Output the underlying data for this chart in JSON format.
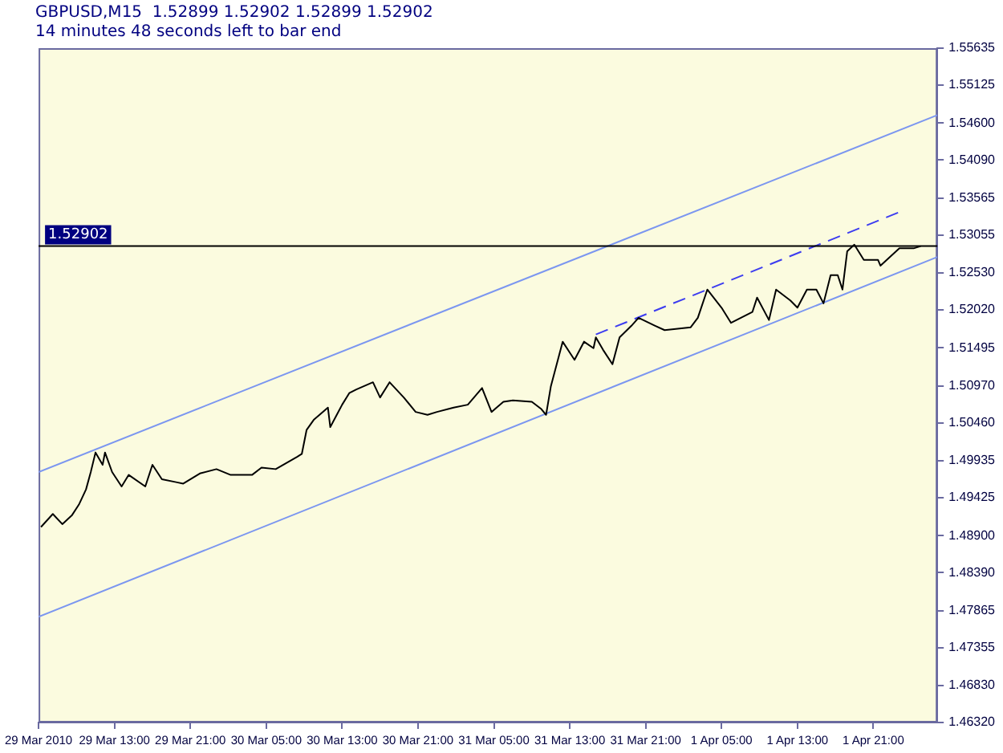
{
  "chart_data": {
    "type": "line",
    "title": "GBPUSD,M15  1.52899 1.52902 1.52899 1.52902",
    "subtitle": "14 minutes 48 seconds left to bar end",
    "series": [
      {
        "color": "#000000",
        "x": [
          "2010-03-29T05:15",
          "2010-03-29T06:30",
          "2010-03-29T07:30",
          "2010-03-29T08:30",
          "2010-03-29T09:15",
          "2010-03-29T10:00",
          "2010-03-29T10:30",
          "2010-03-29T11:00",
          "2010-03-29T11:45",
          "2010-03-29T12:00",
          "2010-03-29T12:45",
          "2010-03-29T13:45",
          "2010-03-29T14:30",
          "2010-03-29T16:15",
          "2010-03-29T17:00",
          "2010-03-29T18:00",
          "2010-03-29T19:30",
          "2010-03-29T20:15",
          "2010-03-29T22:00",
          "2010-03-29T23:45",
          "2010-03-30T01:15",
          "2010-03-30T03:30",
          "2010-03-30T04:30",
          "2010-03-30T06:00",
          "2010-03-30T08:15",
          "2010-03-30T08:45",
          "2010-03-30T09:15",
          "2010-03-30T10:00",
          "2010-03-30T11:30",
          "2010-03-30T11:45",
          "2010-03-30T13:00",
          "2010-03-30T13:45",
          "2010-03-30T14:30",
          "2010-03-30T16:15",
          "2010-03-30T17:00",
          "2010-03-30T18:00",
          "2010-03-30T19:30",
          "2010-03-30T20:45",
          "2010-03-30T22:00",
          "2010-03-30T23:00",
          "2010-03-31T00:45",
          "2010-03-31T02:15",
          "2010-03-31T03:45",
          "2010-03-31T04:45",
          "2010-03-31T06:00",
          "2010-03-31T07:00",
          "2010-03-31T09:00",
          "2010-03-31T10:00",
          "2010-03-31T10:30",
          "2010-03-31T11:00",
          "2010-03-31T12:15",
          "2010-03-31T13:00",
          "2010-03-31T13:30",
          "2010-03-31T14:30",
          "2010-03-31T15:30",
          "2010-03-31T15:45",
          "2010-03-31T16:30",
          "2010-03-31T17:30",
          "2010-03-31T18:15",
          "2010-03-31T19:30",
          "2010-03-31T20:15",
          "2010-03-31T22:00",
          "2010-03-31T23:00",
          "2010-04-01T01:45",
          "2010-04-01T02:30",
          "2010-04-01T03:30",
          "2010-04-01T05:00",
          "2010-04-01T06:00",
          "2010-04-01T08:15",
          "2010-04-01T08:45",
          "2010-04-01T10:00",
          "2010-04-01T10:45",
          "2010-04-01T12:15",
          "2010-04-01T13:00",
          "2010-04-01T14:00",
          "2010-04-01T15:00",
          "2010-04-01T15:45",
          "2010-04-01T16:30",
          "2010-04-01T17:15",
          "2010-04-01T17:45",
          "2010-04-01T18:15",
          "2010-04-01T19:00",
          "2010-04-01T20:00",
          "2010-04-01T21:30",
          "2010-04-01T21:45",
          "2010-04-01T23:45",
          "2010-04-02T01:15",
          "2010-04-02T02:00"
        ],
        "values": [
          1.4902,
          1.492,
          1.4906,
          1.4918,
          1.4933,
          1.4954,
          1.4978,
          1.5005,
          1.4988,
          1.5005,
          1.4978,
          1.4958,
          1.4974,
          1.4958,
          1.4988,
          1.4968,
          1.4964,
          1.4962,
          1.4976,
          1.4982,
          1.4974,
          1.4974,
          1.4984,
          1.4982,
          1.4999,
          1.5003,
          1.5036,
          1.505,
          1.5067,
          1.504,
          1.5071,
          1.5087,
          1.5092,
          1.5102,
          1.5081,
          1.5102,
          1.5081,
          1.5061,
          1.5057,
          1.5061,
          1.5067,
          1.5071,
          1.5094,
          1.5061,
          1.5075,
          1.5077,
          1.5075,
          1.5065,
          1.5057,
          1.5096,
          1.5158,
          1.5143,
          1.5133,
          1.5158,
          1.5149,
          1.5164,
          1.5147,
          1.5127,
          1.5164,
          1.518,
          1.5191,
          1.518,
          1.5174,
          1.5178,
          1.5191,
          1.523,
          1.5205,
          1.5184,
          1.5199,
          1.5219,
          1.5188,
          1.523,
          1.5215,
          1.5205,
          1.523,
          1.523,
          1.5211,
          1.525,
          1.525,
          1.523,
          1.5283,
          1.5292,
          1.5271,
          1.5271,
          1.5263,
          1.5287,
          1.5287,
          1.529
        ]
      },
      {
        "type": "line",
        "color": "#7b96f0",
        "x": [
          "2010-03-29T05:00",
          "2010-04-02T03:45"
        ],
        "values": [
          1.4978,
          1.5471
        ]
      },
      {
        "type": "line",
        "color": "#7b96f0",
        "x": [
          "2010-03-29T05:00",
          "2010-04-02T03:45"
        ],
        "values": [
          1.4778,
          1.5275
        ]
      },
      {
        "type": "line",
        "color": "#3c3cf0",
        "line_style": "dashed",
        "x": [
          "2010-03-31T15:45",
          "2010-04-01T23:45"
        ],
        "values": [
          1.5168,
          1.5337
        ]
      }
    ],
    "xlim": [
      "2010-03-29T05:00",
      "2010-04-02T03:45"
    ],
    "xticks": [
      {
        "value": "2010-03-29T05:00",
        "label": "29 Mar 2010"
      },
      {
        "value": "2010-03-29T13:00",
        "label": "29 Mar 13:00"
      },
      {
        "value": "2010-03-29T21:00",
        "label": "29 Mar 21:00"
      },
      {
        "value": "2010-03-30T05:00",
        "label": "30 Mar 05:00"
      },
      {
        "value": "2010-03-30T13:00",
        "label": "30 Mar 13:00"
      },
      {
        "value": "2010-03-30T21:00",
        "label": "30 Mar 21:00"
      },
      {
        "value": "2010-03-31T05:00",
        "label": "31 Mar 05:00"
      },
      {
        "value": "2010-03-31T13:00",
        "label": "31 Mar 13:00"
      },
      {
        "value": "2010-03-31T21:00",
        "label": "31 Mar 21:00"
      },
      {
        "value": "2010-04-01T05:00",
        "label": "1 Apr 05:00"
      },
      {
        "value": "2010-04-01T13:00",
        "label": "1 Apr 13:00"
      },
      {
        "value": "2010-04-01T21:00",
        "label": "1 Apr 21:00"
      }
    ],
    "ylim": [
      1.4632,
      1.55635
    ],
    "yticks": [
      {
        "value": 1.4632,
        "label": "1.46320"
      },
      {
        "value": 1.4683,
        "label": "1.46830"
      },
      1.47355,
      1.47865,
      {
        "value": 1.4839,
        "label": "1.48390"
      },
      {
        "value": 1.489,
        "label": "1.48900"
      },
      1.49425,
      1.49935,
      {
        "value": 1.5046,
        "label": "1.50460"
      },
      {
        "value": 1.5097,
        "label": "1.50970"
      },
      1.51495,
      {
        "value": 1.5202,
        "label": "1.52020"
      },
      {
        "value": 1.5253,
        "label": "1.52530"
      },
      1.53055,
      1.53565,
      {
        "value": 1.5409,
        "label": "1.54090"
      },
      {
        "value": 1.546,
        "label": "1.54600"
      },
      1.55125,
      1.55635
    ],
    "ref_lines": [
      {
        "axis": "y",
        "value": 1.52902,
        "label": "1.52902",
        "color": "#000000"
      }
    ],
    "grid": false,
    "legend": false,
    "marker": "none"
  }
}
